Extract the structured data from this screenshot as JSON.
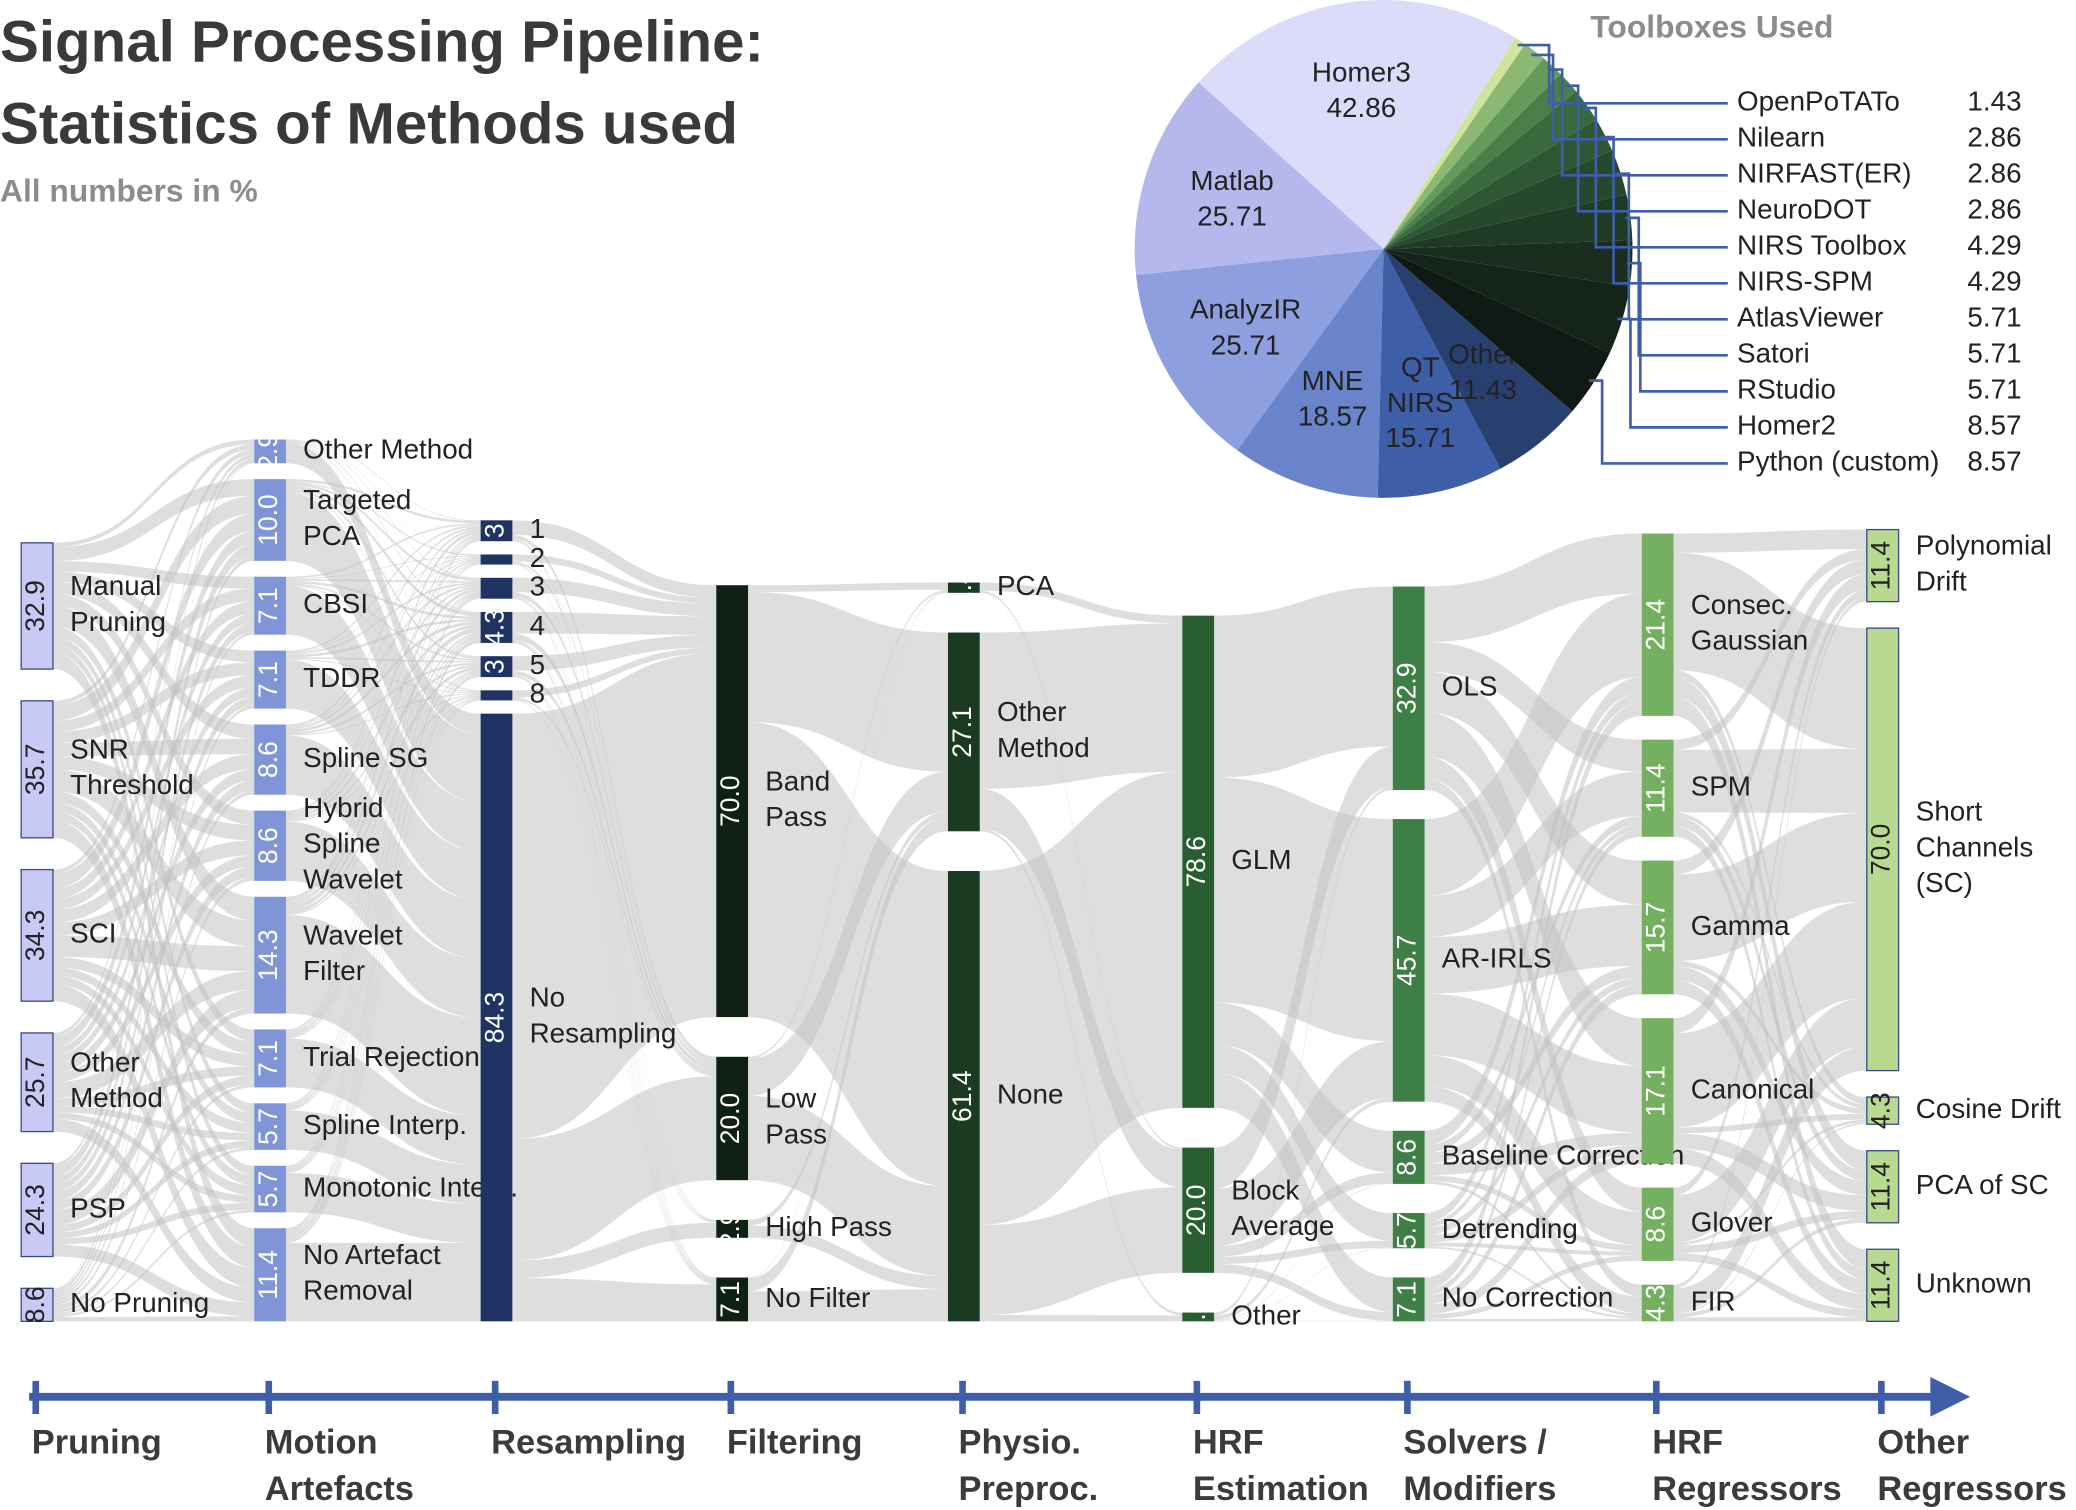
{
  "chart_data": [
    {
      "type": "sankey",
      "title": "Signal Processing Pipeline:\nStatistics of Methods used",
      "subtitle": "All numbers in %",
      "stages": [
        {
          "name": "Pruning",
          "color": "#c9c9f5",
          "categories": [
            "Manual\nPruning",
            "SNR\nThreshold",
            "SCI",
            "Other\nMethod",
            "PSP",
            "No Pruning"
          ],
          "values": [
            32.9,
            35.7,
            34.3,
            25.7,
            24.3,
            8.6
          ],
          "value_labels": [
            "32.9",
            "35.7",
            "34.3",
            "25.7",
            "24.3",
            "8.6"
          ]
        },
        {
          "name": "Motion\nArtefacts",
          "color": "#7f95d8",
          "categories": [
            "Other Method",
            "Targeted\nPCA",
            "CBSI",
            "TDDR",
            "Spline SG",
            "Hybrid\nSpline\nWavelet",
            "Wavelet\nFilter",
            "Trial Rejection",
            "Spline Interp.",
            "Monotonic Interp.",
            "No Artefact\nRemoval"
          ],
          "values": [
            2.9,
            10.0,
            7.1,
            7.1,
            8.6,
            8.6,
            14.3,
            7.1,
            5.7,
            5.7,
            11.4
          ],
          "value_labels": [
            "2.9",
            "10.0",
            "7.1",
            "7.1",
            "8.6",
            "8.6",
            "14.3",
            "7.1",
            "5.7",
            "5.7",
            "11.4"
          ]
        },
        {
          "name": "Resampling",
          "color": "#1f3464",
          "categories": [
            "1",
            "2",
            "3",
            "4",
            "5",
            "8",
            "No\nResampling"
          ],
          "values": [
            2.9,
            1.4,
            2.9,
            4.3,
            2.9,
            1.4,
            84.3
          ],
          "value_labels": [
            "3",
            null,
            null,
            "4.3",
            "3",
            null,
            "84.3"
          ]
        },
        {
          "name": "Filtering",
          "color": "#0f2114",
          "categories": [
            "Band\nPass",
            "Low\nPass",
            "High Pass",
            "No Filter"
          ],
          "values": [
            70.0,
            20.0,
            2.9,
            7.1
          ],
          "value_labels": [
            "70.0",
            "20.0",
            "2.9",
            "7.1"
          ]
        },
        {
          "name": "Physio.\nPreproc.",
          "color": "#1b3a22",
          "categories": [
            "PCA",
            "Other\nMethod",
            "None"
          ],
          "values": [
            1.4,
            27.1,
            61.4
          ],
          "value_labels": [
            "1.4",
            "27.1",
            "61.4"
          ]
        },
        {
          "name": "HRF\nEstimation",
          "color": "#285e30",
          "categories": [
            "GLM",
            "Block\nAverage",
            "Other"
          ],
          "values": [
            78.6,
            20.0,
            1.4
          ],
          "value_labels": [
            "78.6",
            "20.0",
            "1.4"
          ]
        },
        {
          "name": "Solvers /\nModifiers",
          "color": "#3d7f44",
          "categories": [
            "OLS",
            "AR-IRLS",
            "Baseline Correction",
            "Detrending",
            "No Correction"
          ],
          "values": [
            32.9,
            45.7,
            8.6,
            5.7,
            7.1
          ],
          "value_labels": [
            "32.9",
            "45.7",
            "8.6",
            "5.7",
            "7.1"
          ]
        },
        {
          "name": "HRF\nRegressors",
          "color": "#74b060",
          "categories": [
            "Consec.\nGaussian",
            "SPM",
            "Gamma",
            "Canonical",
            "Glover",
            "FIR"
          ],
          "values": [
            21.4,
            11.4,
            15.7,
            17.1,
            8.6,
            4.3
          ],
          "value_labels": [
            "21.4",
            "11.4",
            "15.7",
            "17.1",
            "8.6",
            "4.3"
          ]
        },
        {
          "name": "Other\nRegressors",
          "color": "#b8da90",
          "categories": [
            "Polynomial\nDrift",
            "Short\nChannels\n(SC)",
            "Cosine Drift",
            "PCA of SC",
            "Unknown"
          ],
          "values": [
            11.4,
            70.0,
            4.3,
            11.4,
            11.4
          ],
          "value_labels": [
            "11.4",
            "70.0",
            "4.3",
            "11.4",
            "11.4"
          ]
        }
      ]
    },
    {
      "type": "pie",
      "title": "Toolboxes Used",
      "categories": [
        "Homer3",
        "Matlab",
        "AnalyzIR",
        "MNE",
        "QT\nNIRS",
        "Other",
        "Python (custom)",
        "Homer2",
        "RStudio",
        "Satori",
        "AtlasViewer",
        "NIRS-SPM",
        "NIRS Toolbox",
        "NeuroDOT",
        "NIRFAST(ER)",
        "Nilearn",
        "OpenPoTATo"
      ],
      "values": [
        42.86,
        25.71,
        25.71,
        18.57,
        15.71,
        11.43,
        8.57,
        8.57,
        5.71,
        5.71,
        5.71,
        4.29,
        4.29,
        2.86,
        2.86,
        2.86,
        1.43
      ],
      "colors": [
        "#dcdcfa",
        "#b4b8ec",
        "#8e9fe0",
        "#6a84cc",
        "#3f5ea8",
        "#27406f",
        "#0e1a13",
        "#14241a",
        "#1a2e1f",
        "#1f3a25",
        "#26482c",
        "#2e5834",
        "#386a3d",
        "#4a7f4a",
        "#649a5a",
        "#8cb874",
        "#cfe59c"
      ]
    }
  ]
}
